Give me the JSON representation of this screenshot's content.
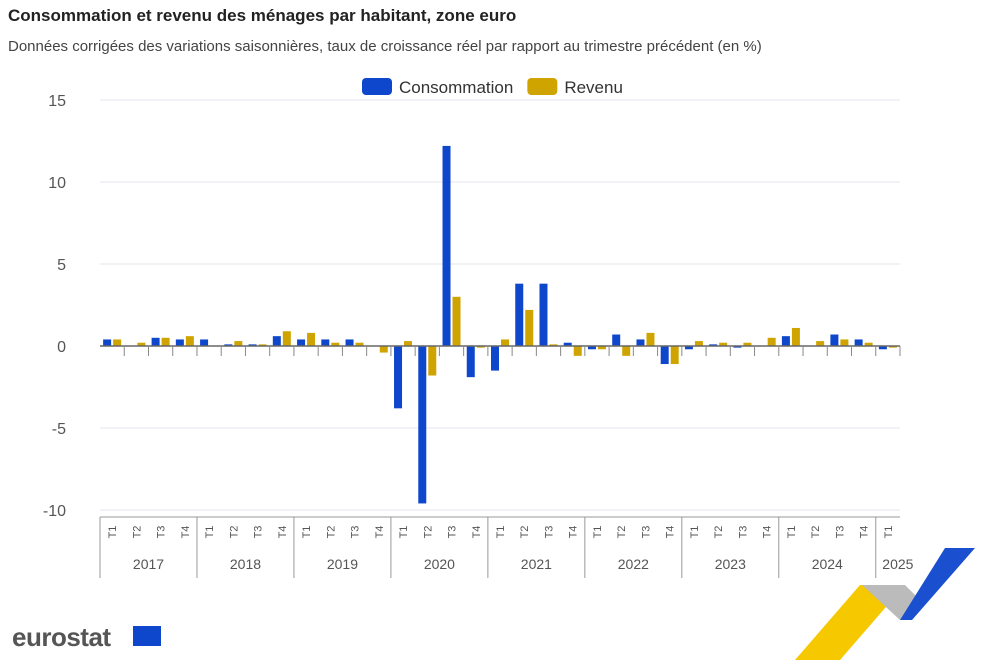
{
  "title": "Consommation et revenu des ménages par habitant, zone euro",
  "subtitle": "Données corrigées des variations saisonnières, taux de croissance réel par rapport au trimestre précédent (en %)",
  "logo_text": "eurostat",
  "chart_data": {
    "type": "bar",
    "title": "Consommation et revenu des ménages par habitant, zone euro",
    "ylim": [
      -10,
      15
    ],
    "yticks": [
      -10,
      -5,
      0,
      5,
      10,
      15
    ],
    "grid": true,
    "legend": "top-center",
    "years": [
      "2017",
      "2018",
      "2019",
      "2020",
      "2021",
      "2022",
      "2023",
      "2024",
      "2025"
    ],
    "quarters": [
      "T1",
      "T2",
      "T3",
      "T4"
    ],
    "categories": [
      "2017T1",
      "2017T2",
      "2017T3",
      "2017T4",
      "2018T1",
      "2018T2",
      "2018T3",
      "2018T4",
      "2019T1",
      "2019T2",
      "2019T3",
      "2019T4",
      "2020T1",
      "2020T2",
      "2020T3",
      "2020T4",
      "2021T1",
      "2021T2",
      "2021T3",
      "2021T4",
      "2022T1",
      "2022T2",
      "2022T3",
      "2022T4",
      "2023T1",
      "2023T2",
      "2023T3",
      "2023T4",
      "2024T1",
      "2024T2",
      "2024T3",
      "2024T4",
      "2025T1"
    ],
    "series": [
      {
        "name": "Consommation",
        "color": "#0e47cb",
        "values": [
          0.4,
          0.0,
          0.5,
          0.4,
          0.4,
          0.1,
          0.1,
          0.6,
          0.4,
          0.4,
          0.4,
          0.0,
          -3.8,
          -9.6,
          12.2,
          -1.9,
          -1.5,
          3.8,
          3.8,
          0.2,
          -0.2,
          0.7,
          0.4,
          -1.1,
          -0.2,
          0.1,
          -0.1,
          0.0,
          0.6,
          0.0,
          0.7,
          0.4,
          -0.2
        ]
      },
      {
        "name": "Revenu",
        "color": "#d0a400",
        "values": [
          0.4,
          0.2,
          0.5,
          0.6,
          0.0,
          0.3,
          0.1,
          0.9,
          0.8,
          0.2,
          0.2,
          -0.4,
          0.3,
          -1.8,
          3.0,
          -0.1,
          0.4,
          2.2,
          0.1,
          -0.6,
          -0.2,
          -0.6,
          0.8,
          -1.1,
          0.3,
          0.2,
          0.2,
          0.5,
          1.1,
          0.3,
          0.4,
          0.2,
          -0.1
        ]
      }
    ]
  }
}
